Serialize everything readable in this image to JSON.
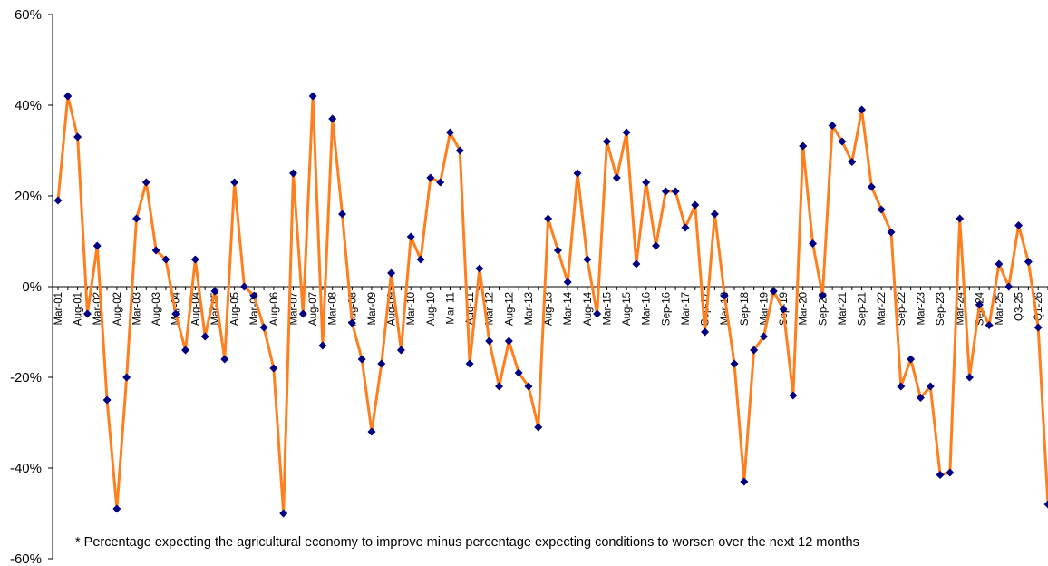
{
  "chart_data": {
    "type": "line",
    "title": "",
    "xlabel": "",
    "ylabel": "",
    "ylim": [
      -60,
      60
    ],
    "yticks": [
      -60,
      -40,
      -20,
      0,
      20,
      40,
      60
    ],
    "ytick_labels": [
      "-60%",
      "-40%",
      "-20%",
      "0%",
      "20%",
      "40%",
      "60%"
    ],
    "grid": false,
    "legend": "none",
    "line_color": "#FF7F1E",
    "marker_color": "#000080",
    "categories": [
      "Mar-01",
      "",
      "Aug-01",
      "",
      "Mar-02",
      "",
      "Aug-02",
      "",
      "Mar-03",
      "",
      "Aug-03",
      "",
      "Mar-04",
      "",
      "Aug-04",
      "",
      "Mar-05",
      "",
      "Aug-05",
      "",
      "Mar-06",
      "",
      "Aug-06",
      "",
      "Mar-07",
      "",
      "Aug-07",
      "",
      "Mar-08",
      "",
      "Aug-08",
      "",
      "Mar-09",
      "",
      "Aug-09",
      "",
      "Mar-10",
      "",
      "Aug-10",
      "",
      "Mar-11",
      "",
      "Aug-11",
      "",
      "Mar-12",
      "",
      "Aug-12",
      "",
      "Mar-13",
      "",
      "Aug-13",
      "",
      "Mar-14",
      "",
      "Aug-14",
      "",
      "Mar-15",
      "",
      "Aug-15",
      "",
      "Mar-16",
      "",
      "Sep-16",
      "",
      "Mar-17",
      "",
      "Sep-17",
      "",
      "Mar-18",
      "",
      "Sep-18",
      "",
      "Mar-19",
      "",
      "Sep-19",
      "",
      "Mar-20",
      "",
      "Sep-20",
      "",
      "Mar-21",
      "",
      "Sep-21",
      "",
      "Mar-22",
      "",
      "Sep-22",
      "",
      "Mar-23",
      "",
      "Sep-23",
      "",
      "Mar-24",
      "",
      "Sep-24",
      "",
      "Mar-25",
      "",
      "Q3-25",
      "",
      "Q1-26",
      ""
    ],
    "values": [
      19,
      42,
      33,
      -6,
      9,
      -25,
      -49,
      -20,
      15,
      23,
      8,
      6,
      -6,
      -14,
      6,
      -11,
      -1,
      -16,
      23,
      0,
      -2,
      -9,
      -18,
      -50,
      25,
      -6,
      42,
      -13,
      37,
      16,
      -8,
      -16,
      -32,
      -17,
      3,
      -14,
      11,
      6,
      24,
      23,
      34,
      30,
      -17,
      4,
      -12,
      -22,
      -12,
      -19,
      -22,
      -31,
      15,
      8,
      1,
      25,
      6,
      -6,
      32,
      24,
      34,
      5,
      23,
      9,
      21,
      21,
      13,
      18,
      -10,
      16,
      -2,
      -17,
      -43,
      -14,
      -11,
      -1,
      -5,
      -24,
      31,
      9.5,
      -2,
      35.5,
      32,
      27.5,
      39,
      22,
      17,
      12,
      -22,
      -16,
      -24.5,
      -22,
      -41.5,
      -41,
      15,
      -20,
      -4,
      -8.5,
      5,
      0,
      13.5,
      5.5,
      -9,
      -48
    ],
    "footnote": "* Percentage expecting the agricultural economy to improve minus percentage expecting conditions to worsen over the next 12 months"
  }
}
